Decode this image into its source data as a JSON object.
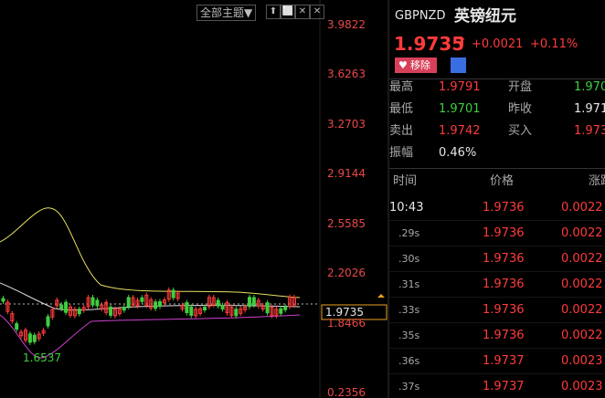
{
  "toolbar": {
    "theme_menu": "全部主题▼",
    "icons": [
      "⬆",
      "⬜",
      "✕",
      "✕"
    ]
  },
  "chart": {
    "axis_labels": [
      "3.9822",
      "3.6263",
      "3.2703",
      "2.9144",
      "2.5585",
      "2.2026",
      "1.8466",
      "0.2356"
    ],
    "current_price": "1.9735",
    "low_label": "1.6537"
  },
  "quote": {
    "symbol": "GBPNZD",
    "name": "英镑纽元",
    "price": "1.9735",
    "arrow": "⬆",
    "change": "+0.0021",
    "change_pct": "+0.11%",
    "remove_button": "移除",
    "stats": [
      [
        "最高",
        "1.9791",
        "开盘",
        "1.970"
      ],
      [
        "最低",
        "1.9701",
        "昨收",
        "1.971"
      ],
      [
        "卖出",
        "1.9742",
        "买入",
        "1.973"
      ],
      [
        "振幅",
        "0.46%"
      ]
    ]
  },
  "ticks": {
    "header": [
      "时间",
      "价格",
      "涨跌"
    ],
    "rows": [
      [
        "10:43",
        "1.9736",
        "0.0022"
      ],
      [
        ".29s",
        "1.9736",
        "0.0022"
      ],
      [
        ".30s",
        "1.9736",
        "0.0022"
      ],
      [
        ".31s",
        "1.9736",
        "0.0022"
      ],
      [
        ".33s",
        "1.9736",
        "0.0022"
      ],
      [
        ".35s",
        "1.9736",
        "0.0022"
      ],
      [
        ".36s",
        "1.9737",
        "0.0023"
      ],
      [
        ".37s",
        "1.9737",
        "0.0023"
      ]
    ]
  }
}
